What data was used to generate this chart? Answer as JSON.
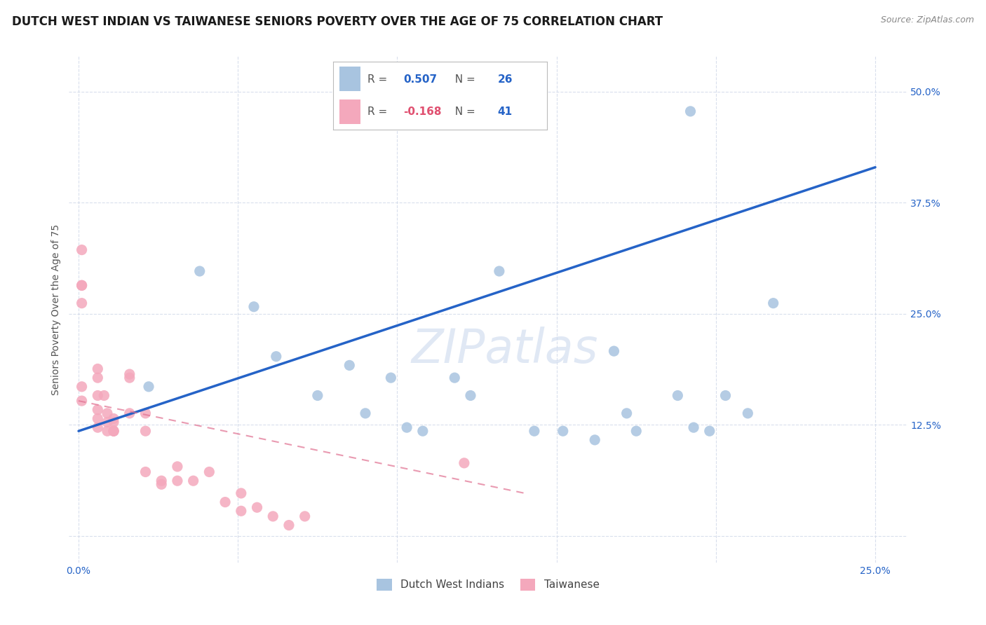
{
  "title": "DUTCH WEST INDIAN VS TAIWANESE SENIORS POVERTY OVER THE AGE OF 75 CORRELATION CHART",
  "source": "Source: ZipAtlas.com",
  "ylabel": "Seniors Poverty Over the Age of 75",
  "x_ticks": [
    0.0,
    0.05,
    0.1,
    0.15,
    0.2,
    0.25
  ],
  "x_tick_labels": [
    "0.0%",
    "",
    "",
    "",
    "",
    "25.0%"
  ],
  "y_ticks": [
    0.0,
    0.125,
    0.25,
    0.375,
    0.5
  ],
  "y_tick_labels": [
    "",
    "12.5%",
    "25.0%",
    "37.5%",
    "50.0%"
  ],
  "xlim": [
    -0.003,
    0.26
  ],
  "ylim": [
    -0.03,
    0.54
  ],
  "blue_R": 0.507,
  "blue_N": 26,
  "pink_R": -0.168,
  "pink_N": 41,
  "blue_color": "#a8c4e0",
  "pink_color": "#f4a8bc",
  "blue_line_color": "#2563c7",
  "pink_line_color": "#e07090",
  "watermark": "ZIPatlas",
  "blue_points_x": [
    0.022,
    0.038,
    0.055,
    0.062,
    0.075,
    0.085,
    0.09,
    0.098,
    0.103,
    0.108,
    0.118,
    0.123,
    0.132,
    0.143,
    0.152,
    0.162,
    0.168,
    0.172,
    0.175,
    0.188,
    0.193,
    0.198,
    0.203,
    0.21,
    0.218,
    0.192
  ],
  "blue_points_y": [
    0.168,
    0.298,
    0.258,
    0.202,
    0.158,
    0.192,
    0.138,
    0.178,
    0.122,
    0.118,
    0.178,
    0.158,
    0.298,
    0.118,
    0.118,
    0.108,
    0.208,
    0.138,
    0.118,
    0.158,
    0.122,
    0.118,
    0.158,
    0.138,
    0.262,
    0.478
  ],
  "pink_points_x": [
    0.001,
    0.001,
    0.001,
    0.001,
    0.001,
    0.001,
    0.006,
    0.006,
    0.006,
    0.006,
    0.006,
    0.006,
    0.008,
    0.009,
    0.009,
    0.009,
    0.011,
    0.011,
    0.011,
    0.011,
    0.011,
    0.016,
    0.016,
    0.016,
    0.021,
    0.021,
    0.021,
    0.026,
    0.026,
    0.031,
    0.031,
    0.036,
    0.041,
    0.046,
    0.051,
    0.051,
    0.056,
    0.061,
    0.066,
    0.071,
    0.121
  ],
  "pink_points_y": [
    0.322,
    0.282,
    0.282,
    0.262,
    0.168,
    0.152,
    0.188,
    0.178,
    0.158,
    0.142,
    0.132,
    0.122,
    0.158,
    0.138,
    0.128,
    0.118,
    0.132,
    0.128,
    0.118,
    0.118,
    0.118,
    0.182,
    0.178,
    0.138,
    0.138,
    0.118,
    0.072,
    0.062,
    0.058,
    0.078,
    0.062,
    0.062,
    0.072,
    0.038,
    0.048,
    0.028,
    0.032,
    0.022,
    0.012,
    0.022,
    0.082
  ],
  "blue_line_x0": 0.0,
  "blue_line_x1": 0.25,
  "blue_line_y0": 0.118,
  "blue_line_y1": 0.415,
  "pink_line_x0": 0.0,
  "pink_line_x1": 0.14,
  "pink_line_y0": 0.152,
  "pink_line_y1": 0.048,
  "title_fontsize": 12,
  "axis_label_fontsize": 10,
  "tick_fontsize": 10,
  "background_color": "#ffffff",
  "grid_color": "#d0d8e8",
  "blue_tick_color": "#2563c7",
  "legend_blue_r_color": "#2563c7",
  "legend_blue_n_color": "#2563c7",
  "legend_pink_r_color": "#e05070",
  "legend_pink_n_color": "#2563c7"
}
